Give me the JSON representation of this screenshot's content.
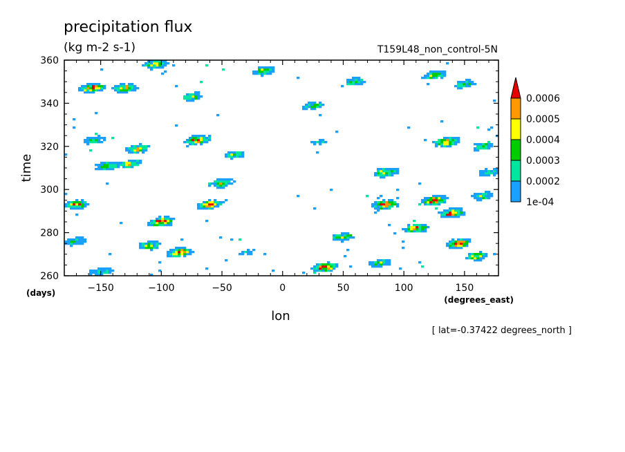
{
  "chart_data": {
    "type": "heatmap",
    "title": "precipitation flux",
    "units": "(kg m-2 s-1)",
    "dataset": "T159L48_non_control-5N",
    "xlabel": "lon",
    "xunits": "(degrees_east)",
    "ylabel": "time",
    "yunits": "(days)",
    "xlim": [
      -180,
      178
    ],
    "ylim": [
      260,
      360
    ],
    "xticks": [
      -150,
      -100,
      -50,
      0,
      50,
      100,
      150
    ],
    "yticks": [
      260,
      280,
      300,
      320,
      340,
      360
    ],
    "xtick_labels": [
      "−150",
      "−100",
      "−50",
      "0",
      "50",
      "100",
      "150"
    ],
    "ytick_labels": [
      "260",
      "280",
      "300",
      "320",
      "340",
      "360"
    ],
    "footnote": "[ lat=-0.37422 degrees_north ]",
    "colorbar": {
      "labels": [
        "1e-04",
        "0.0002",
        "0.0003",
        "0.0004",
        "0.0005",
        "0.0006"
      ],
      "levels": [
        0.0001,
        0.0002,
        0.0003,
        0.0004,
        0.0005,
        0.0006
      ],
      "colors": [
        "#1aa0ff",
        "#00e5a0",
        "#00cc00",
        "#ffff00",
        "#ff9900",
        "#e60000"
      ]
    },
    "features": [
      {
        "lon": -157,
        "time": 347,
        "peak": 0.0006
      },
      {
        "lon": -130,
        "time": 347,
        "peak": 0.0005
      },
      {
        "lon": -75,
        "time": 343,
        "peak": 0.0004
      },
      {
        "lon": -105,
        "time": 358,
        "peak": 0.0004
      },
      {
        "lon": -15,
        "time": 355,
        "peak": 0.0004
      },
      {
        "lon": 60,
        "time": 350,
        "peak": 0.0003
      },
      {
        "lon": 125,
        "time": 353,
        "peak": 0.0004
      },
      {
        "lon": 150,
        "time": 349,
        "peak": 0.0003
      },
      {
        "lon": 25,
        "time": 339,
        "peak": 0.0003
      },
      {
        "lon": -155,
        "time": 323,
        "peak": 0.0003
      },
      {
        "lon": -120,
        "time": 319,
        "peak": 0.0005
      },
      {
        "lon": -70,
        "time": 323,
        "peak": 0.0006
      },
      {
        "lon": -40,
        "time": 316,
        "peak": 0.0003
      },
      {
        "lon": 30,
        "time": 322,
        "peak": 0.0002
      },
      {
        "lon": 135,
        "time": 322,
        "peak": 0.0006
      },
      {
        "lon": 165,
        "time": 320,
        "peak": 0.0003
      },
      {
        "lon": -145,
        "time": 311,
        "peak": 0.0004
      },
      {
        "lon": -125,
        "time": 312,
        "peak": 0.0004
      },
      {
        "lon": 85,
        "time": 308,
        "peak": 0.0005
      },
      {
        "lon": 170,
        "time": 308,
        "peak": 0.0003
      },
      {
        "lon": -50,
        "time": 303,
        "peak": 0.0004
      },
      {
        "lon": -60,
        "time": 293,
        "peak": 0.0005
      },
      {
        "lon": -170,
        "time": 293,
        "peak": 0.0005
      },
      {
        "lon": 85,
        "time": 293,
        "peak": 0.0006
      },
      {
        "lon": 125,
        "time": 295,
        "peak": 0.0006
      },
      {
        "lon": 165,
        "time": 297,
        "peak": 0.0003
      },
      {
        "lon": 140,
        "time": 289,
        "peak": 0.0006
      },
      {
        "lon": -100,
        "time": 285,
        "peak": 0.0006
      },
      {
        "lon": 50,
        "time": 278,
        "peak": 0.0004
      },
      {
        "lon": 110,
        "time": 282,
        "peak": 0.0005
      },
      {
        "lon": -170,
        "time": 276,
        "peak": 0.0003
      },
      {
        "lon": -85,
        "time": 271,
        "peak": 0.0006
      },
      {
        "lon": -110,
        "time": 274,
        "peak": 0.0004
      },
      {
        "lon": -30,
        "time": 271,
        "peak": 0.0002
      },
      {
        "lon": 145,
        "time": 275,
        "peak": 0.0006
      },
      {
        "lon": 160,
        "time": 269,
        "peak": 0.0004
      },
      {
        "lon": 35,
        "time": 264,
        "peak": 0.0006
      },
      {
        "lon": 80,
        "time": 266,
        "peak": 0.0003
      },
      {
        "lon": -150,
        "time": 262,
        "peak": 0.0003
      }
    ]
  }
}
